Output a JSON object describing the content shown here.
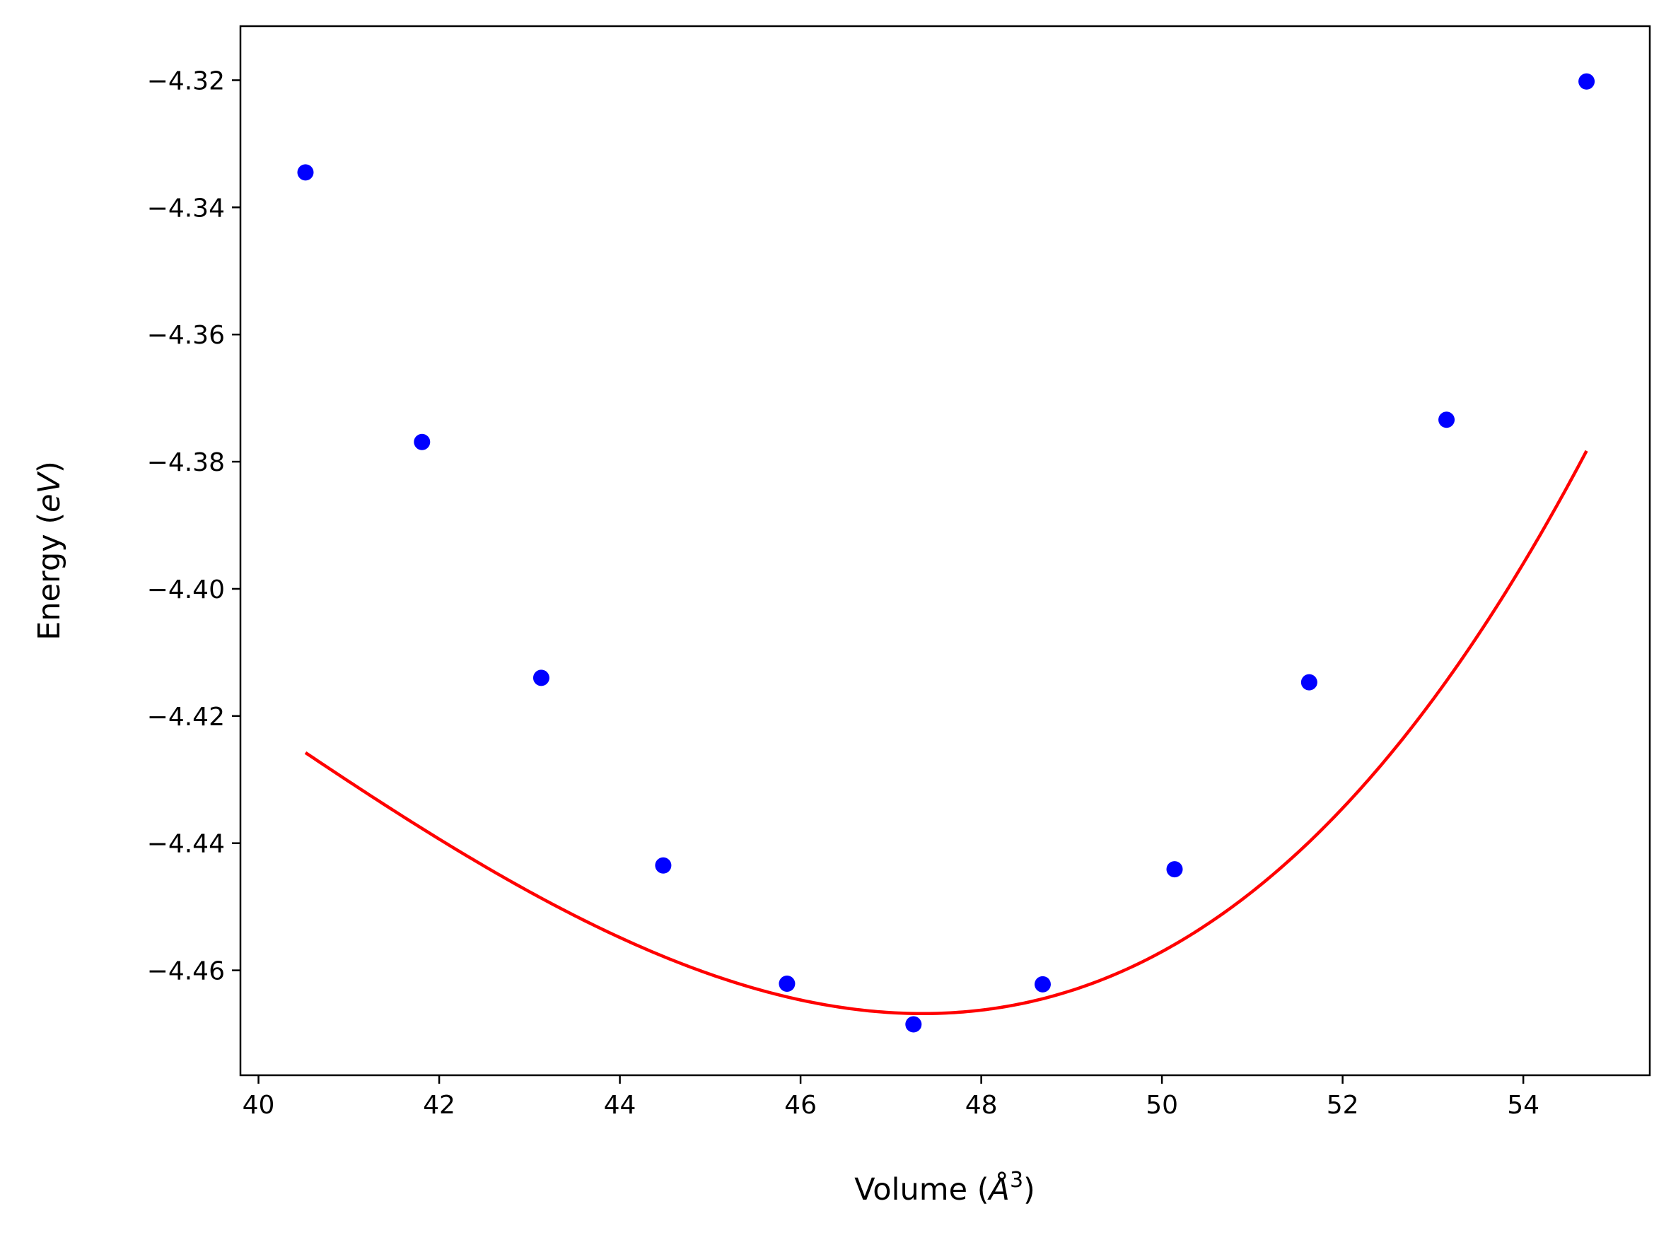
{
  "chart_data": {
    "type": "scatter",
    "xlabel": {
      "prefix": "Volume (",
      "symbol": "Å",
      "sup": "3",
      "suffix": ")"
    },
    "ylabel": {
      "prefix": "Energy (",
      "symbol": "eV",
      "suffix": ")"
    },
    "xlim": [
      39.8,
      55.4
    ],
    "ylim": [
      -4.4765,
      -4.3115
    ],
    "x_ticks": [
      40,
      42,
      44,
      46,
      48,
      50,
      52,
      54
    ],
    "x_tick_labels": [
      "40",
      "42",
      "44",
      "46",
      "48",
      "50",
      "52",
      "54"
    ],
    "y_ticks": [
      -4.32,
      -4.34,
      -4.36,
      -4.38,
      -4.4,
      -4.42,
      -4.44,
      -4.46
    ],
    "y_tick_labels": [
      "−4.32",
      "−4.34",
      "−4.36",
      "−4.38",
      "−4.40",
      "−4.42",
      "−4.44",
      "−4.46"
    ],
    "grid": false,
    "series": [
      {
        "kind": "points",
        "color": "#0000ff",
        "x": [
          40.52,
          41.81,
          43.13,
          44.48,
          45.85,
          47.25,
          48.68,
          50.14,
          51.63,
          53.15,
          54.7
        ],
        "y": [
          -4.3345,
          -4.3769,
          -4.414,
          -4.4435,
          -4.4621,
          -4.4685,
          -4.4622,
          -4.4441,
          -4.4147,
          -4.3734,
          -4.3202
        ]
      },
      {
        "kind": "fit-curve",
        "color": "#ff0000",
        "x_range": [
          40.52,
          54.7
        ],
        "min_x": 47.35,
        "min_y": -4.4668,
        "coeffs": [
          0.001245,
          5.35e-05
        ]
      }
    ]
  }
}
